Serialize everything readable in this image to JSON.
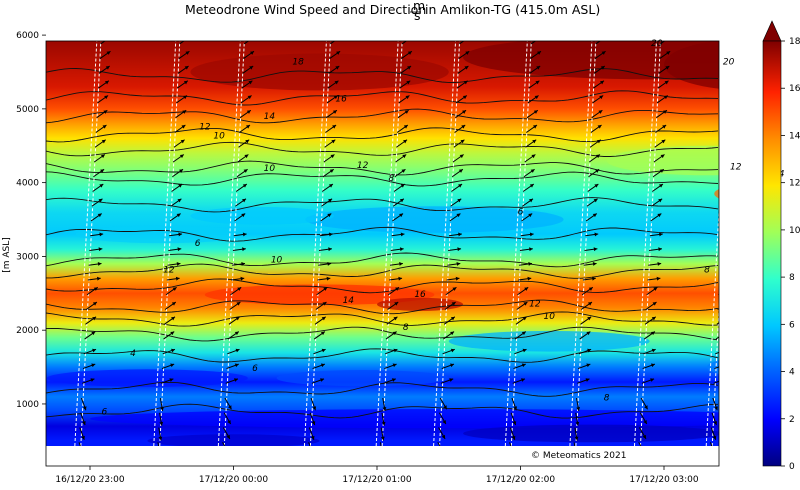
{
  "chart_data": {
    "type": "heatmap",
    "title_prefix": "Meteodrone Wind Speed and Direction",
    "title_unit_num": "m",
    "title_unit_den": "s",
    "title_suffix": "in Amlikon-TG (415.0m ASL)",
    "ylabel": "[m ASL]",
    "xlabel": "",
    "x_ticks": [
      "16/12/20 23:00",
      "17/12/20 00:00",
      "17/12/20 01:00",
      "17/12/20 02:00",
      "17/12/20 03:00"
    ],
    "y_ticks": [
      1000,
      2000,
      3000,
      4000,
      5000,
      6000
    ],
    "ylim": [
      415,
      6050
    ],
    "colorbar": {
      "ticks": [
        0,
        2,
        4,
        6,
        8,
        10,
        12,
        14,
        16,
        18
      ],
      "range": [
        0,
        18
      ],
      "colormap": "jet",
      "extend": "max"
    },
    "watermark": "© Meteomatics 2021",
    "contour_levels": [
      4,
      6,
      8,
      10,
      12,
      14,
      16,
      18,
      20
    ],
    "wind_speed_profile": [
      {
        "alt": 500,
        "speed": 2.5
      },
      {
        "alt": 700,
        "speed": 1.5
      },
      {
        "alt": 900,
        "speed": 3.5
      },
      {
        "alt": 1100,
        "speed": 4.5
      },
      {
        "alt": 1300,
        "speed": 2.5
      },
      {
        "alt": 1500,
        "speed": 4.5
      },
      {
        "alt": 1700,
        "speed": 7.0
      },
      {
        "alt": 1900,
        "speed": 9.0
      },
      {
        "alt": 2100,
        "speed": 11.5
      },
      {
        "alt": 2300,
        "speed": 14.0
      },
      {
        "alt": 2500,
        "speed": 15.0
      },
      {
        "alt": 2700,
        "speed": 13.5
      },
      {
        "alt": 2900,
        "speed": 10.0
      },
      {
        "alt": 3100,
        "speed": 7.5
      },
      {
        "alt": 3300,
        "speed": 6.0
      },
      {
        "alt": 3600,
        "speed": 6.5
      },
      {
        "alt": 3900,
        "speed": 8.0
      },
      {
        "alt": 4200,
        "speed": 9.5
      },
      {
        "alt": 4400,
        "speed": 10.5
      },
      {
        "alt": 4600,
        "speed": 12.0
      },
      {
        "alt": 4800,
        "speed": 13.5
      },
      {
        "alt": 5000,
        "speed": 15.0
      },
      {
        "alt": 5300,
        "speed": 16.5
      },
      {
        "alt": 5600,
        "speed": 17.0
      },
      {
        "alt": 5900,
        "speed": 17.5
      }
    ],
    "contour_labels": [
      {
        "text": "4",
        "x_hours": 0.3,
        "alt": 1650
      },
      {
        "text": "6",
        "x_hours": 0.1,
        "alt": 860
      },
      {
        "text": "6",
        "x_hours": 1.15,
        "alt": 1450
      },
      {
        "text": "8",
        "x_hours": 2.2,
        "alt": 2000
      },
      {
        "text": "10",
        "x_hours": 3.2,
        "alt": 2150
      },
      {
        "text": "12",
        "x_hours": 3.1,
        "alt": 2320
      },
      {
        "text": "14",
        "x_hours": 1.8,
        "alt": 2370
      },
      {
        "text": "16",
        "x_hours": 2.3,
        "alt": 2450
      },
      {
        "text": "12",
        "x_hours": 0.55,
        "alt": 2780
      },
      {
        "text": "10",
        "x_hours": 1.3,
        "alt": 2920
      },
      {
        "text": "6",
        "x_hours": 0.75,
        "alt": 3140
      },
      {
        "text": "6",
        "x_hours": 3.0,
        "alt": 3570
      },
      {
        "text": "8",
        "x_hours": 2.1,
        "alt": 4020
      },
      {
        "text": "10",
        "x_hours": 1.25,
        "alt": 4160
      },
      {
        "text": "12",
        "x_hours": 1.9,
        "alt": 4200
      },
      {
        "text": "14",
        "x_hours": 1.25,
        "alt": 4860
      },
      {
        "text": "12",
        "x_hours": 0.8,
        "alt": 4720
      },
      {
        "text": "10",
        "x_hours": 0.9,
        "alt": 4600
      },
      {
        "text": "16",
        "x_hours": 1.75,
        "alt": 5100
      },
      {
        "text": "18",
        "x_hours": 1.45,
        "alt": 5600
      },
      {
        "text": "12",
        "x_hours": 4.5,
        "alt": 4180
      },
      {
        "text": "14",
        "x_hours": 4.8,
        "alt": 4080
      },
      {
        "text": "20",
        "x_hours": 3.95,
        "alt": 5850
      },
      {
        "text": "20",
        "x_hours": 4.45,
        "alt": 5600
      },
      {
        "text": "8",
        "x_hours": 3.6,
        "alt": 1050
      },
      {
        "text": "8",
        "x_hours": 4.3,
        "alt": 2780
      }
    ],
    "wind_direction_note": "arrows mostly from SW (pointing NE), some westerly near 3000m"
  }
}
